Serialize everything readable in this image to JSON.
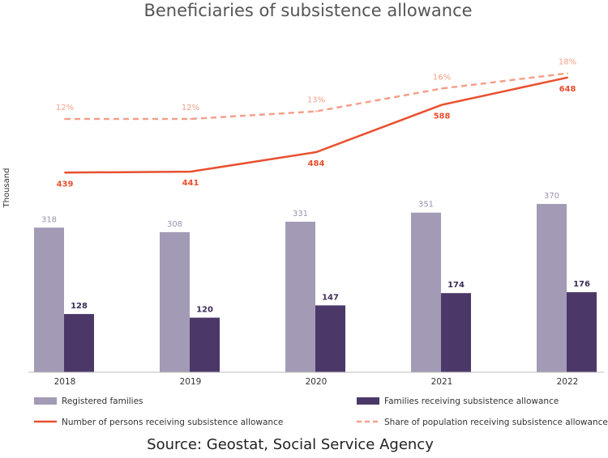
{
  "chart_data": {
    "type": "bar+line",
    "title": "Beneficiaries of subsistence allowance",
    "ylabel": "Thousand",
    "categories": [
      "2018",
      "2019",
      "2020",
      "2021",
      "2022"
    ],
    "series": [
      {
        "name": "Registered families",
        "kind": "bar",
        "values": [
          318,
          308,
          331,
          351,
          370
        ],
        "color": "#a39bb5"
      },
      {
        "name": "Families receiving subsistence allowance",
        "kind": "bar",
        "values": [
          128,
          120,
          147,
          174,
          176
        ],
        "color": "#4b3868"
      },
      {
        "name": "Number of persons receiving subsistence allowance",
        "kind": "line",
        "values": [
          439,
          441,
          484,
          588,
          648
        ],
        "color": "#e8502f"
      },
      {
        "name": "Share of population receiving  subsistence allowance",
        "kind": "dashed-line",
        "unit": "%",
        "values": [
          12,
          12,
          13,
          16,
          18
        ],
        "color": "#f4a08a"
      }
    ],
    "grid": false,
    "legend_placement": "bottom",
    "source": "Source:  Geostat, Social Service Agency"
  }
}
